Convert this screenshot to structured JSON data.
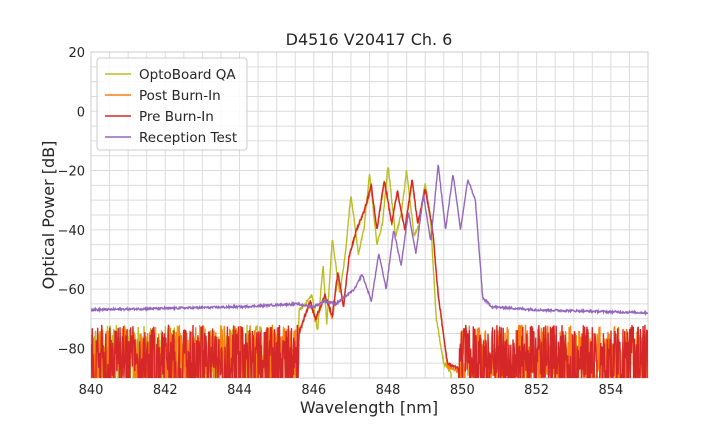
{
  "chart_data": {
    "type": "line",
    "title": "D4516 V20417 Ch. 6",
    "xlabel": "Wavelength [nm]",
    "ylabel": "Optical Power [dB]",
    "xlim": [
      840,
      855
    ],
    "ylim": [
      -90,
      20
    ],
    "xticks": [
      840,
      842,
      844,
      846,
      848,
      850,
      852,
      854
    ],
    "yticks": [
      20,
      0,
      -20,
      -40,
      -60,
      -80
    ],
    "xtick_labels": [
      "840",
      "842",
      "844",
      "846",
      "848",
      "850",
      "852",
      "854"
    ],
    "ytick_labels": [
      "20",
      "0",
      "−20",
      "−40",
      "−60",
      "−80"
    ],
    "grid": true,
    "legend_position": "top-left",
    "series": [
      {
        "name": "OptoBoard QA",
        "color": "#bcbd22",
        "x": [
          840.0,
          845.0,
          845.4,
          845.7,
          845.95,
          846.1,
          846.25,
          846.35,
          846.5,
          846.7,
          846.85,
          847.0,
          847.2,
          847.35,
          847.5,
          847.7,
          847.85,
          848.0,
          848.2,
          848.35,
          848.5,
          848.7,
          848.85,
          849.0,
          849.15,
          849.3,
          849.5,
          849.7
        ],
        "values": [
          -82,
          -82,
          -70,
          -66,
          -62,
          -74,
          -52,
          -72,
          -43,
          -62,
          -48,
          -28,
          -48,
          -40,
          -21,
          -45,
          -38,
          -18,
          -42,
          -35,
          -20,
          -42,
          -38,
          -24,
          -38,
          -70,
          -85,
          -88
        ]
      },
      {
        "name": "Post Burn-In",
        "color": "#ff7f0e",
        "x": [
          840.0,
          845.6,
          845.9,
          846.05,
          846.3,
          846.5,
          846.65,
          846.8,
          846.95,
          847.15,
          847.35,
          847.55,
          847.7,
          847.9,
          848.1,
          848.25,
          848.45,
          848.65,
          848.8,
          849.0,
          849.2,
          849.35,
          849.6,
          849.9
        ],
        "values": [
          -82,
          -75,
          -64,
          -71,
          -62,
          -70,
          -55,
          -66,
          -49,
          -40,
          -34,
          -26,
          -40,
          -24,
          -38,
          -27,
          -40,
          -24,
          -38,
          -26,
          -40,
          -62,
          -86,
          -88
        ]
      },
      {
        "name": "Pre Burn-In",
        "color": "#d62728",
        "x": [
          840.0,
          845.6,
          845.9,
          846.05,
          846.3,
          846.5,
          846.65,
          846.8,
          846.95,
          847.15,
          847.35,
          847.55,
          847.7,
          847.9,
          848.1,
          848.25,
          848.45,
          848.65,
          848.8,
          849.0,
          849.2,
          849.35,
          849.6,
          849.9
        ],
        "values": [
          -82,
          -75,
          -64,
          -70,
          -62,
          -69,
          -54,
          -66,
          -49,
          -40,
          -34,
          -25,
          -40,
          -23,
          -38,
          -27,
          -40,
          -23,
          -38,
          -26,
          -40,
          -62,
          -85,
          -87
        ]
      },
      {
        "name": "Reception Test",
        "color": "#9467bd",
        "x": [
          840.0,
          844.0,
          845.5,
          846.0,
          846.3,
          846.6,
          846.9,
          847.1,
          847.3,
          847.55,
          847.75,
          847.95,
          848.15,
          848.35,
          848.55,
          848.75,
          848.95,
          849.15,
          849.35,
          849.55,
          849.75,
          849.95,
          850.15,
          850.35,
          850.55,
          850.8,
          852.0,
          855.0
        ],
        "values": [
          -67,
          -66,
          -65,
          -66,
          -64,
          -65,
          -62,
          -60,
          -55,
          -64,
          -48,
          -60,
          -40,
          -52,
          -34,
          -48,
          -28,
          -44,
          -18,
          -40,
          -21,
          -40,
          -23,
          -30,
          -63,
          -66,
          -67,
          -68
        ]
      }
    ],
    "noise_floor": {
      "xmin": 840.0,
      "xmax": 855.0,
      "y_high": -72,
      "y_low": -90
    }
  }
}
